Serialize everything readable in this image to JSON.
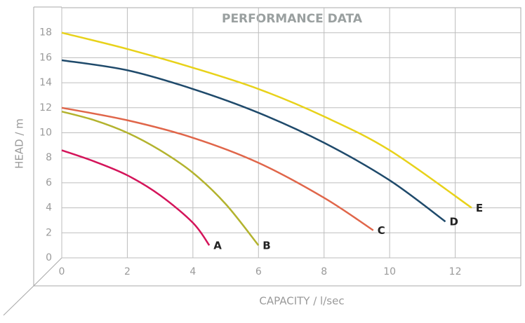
{
  "chart_data": {
    "type": "line",
    "title": "PERFORMANCE DATA",
    "x_label": "CAPACITY / l/sec",
    "y_label": "HEAD / m",
    "xlim": [
      0,
      14
    ],
    "ylim": [
      0,
      20
    ],
    "xticks": [
      0,
      2,
      4,
      6,
      8,
      10,
      12
    ],
    "yticks": [
      0,
      2,
      4,
      6,
      8,
      10,
      12,
      14,
      16,
      18
    ],
    "grid": true,
    "series": [
      {
        "name": "A",
        "color": "#d4145a",
        "x": [
          0,
          1,
          2,
          3,
          4,
          4.5
        ],
        "values": [
          8.6,
          7.7,
          6.6,
          5.0,
          2.8,
          1.0
        ]
      },
      {
        "name": "B",
        "color": "#b3b32e",
        "x": [
          0,
          1,
          2,
          3,
          4,
          5,
          6
        ],
        "values": [
          11.7,
          11.0,
          10.0,
          8.6,
          6.8,
          4.3,
          1.0
        ]
      },
      {
        "name": "C",
        "color": "#e0664a",
        "x": [
          0,
          2,
          4,
          6,
          8,
          9.5
        ],
        "values": [
          12.0,
          11.0,
          9.6,
          7.6,
          4.8,
          2.2
        ]
      },
      {
        "name": "D",
        "color": "#1f4a6b",
        "x": [
          0,
          2,
          4,
          6,
          8,
          10,
          11.7
        ],
        "values": [
          15.8,
          15.0,
          13.5,
          11.6,
          9.2,
          6.2,
          2.9
        ]
      },
      {
        "name": "E",
        "color": "#e8d21a",
        "x": [
          0,
          2,
          4,
          6,
          8,
          10,
          12.5
        ],
        "values": [
          18.0,
          16.7,
          15.2,
          13.5,
          11.3,
          8.6,
          4.0
        ]
      }
    ]
  }
}
